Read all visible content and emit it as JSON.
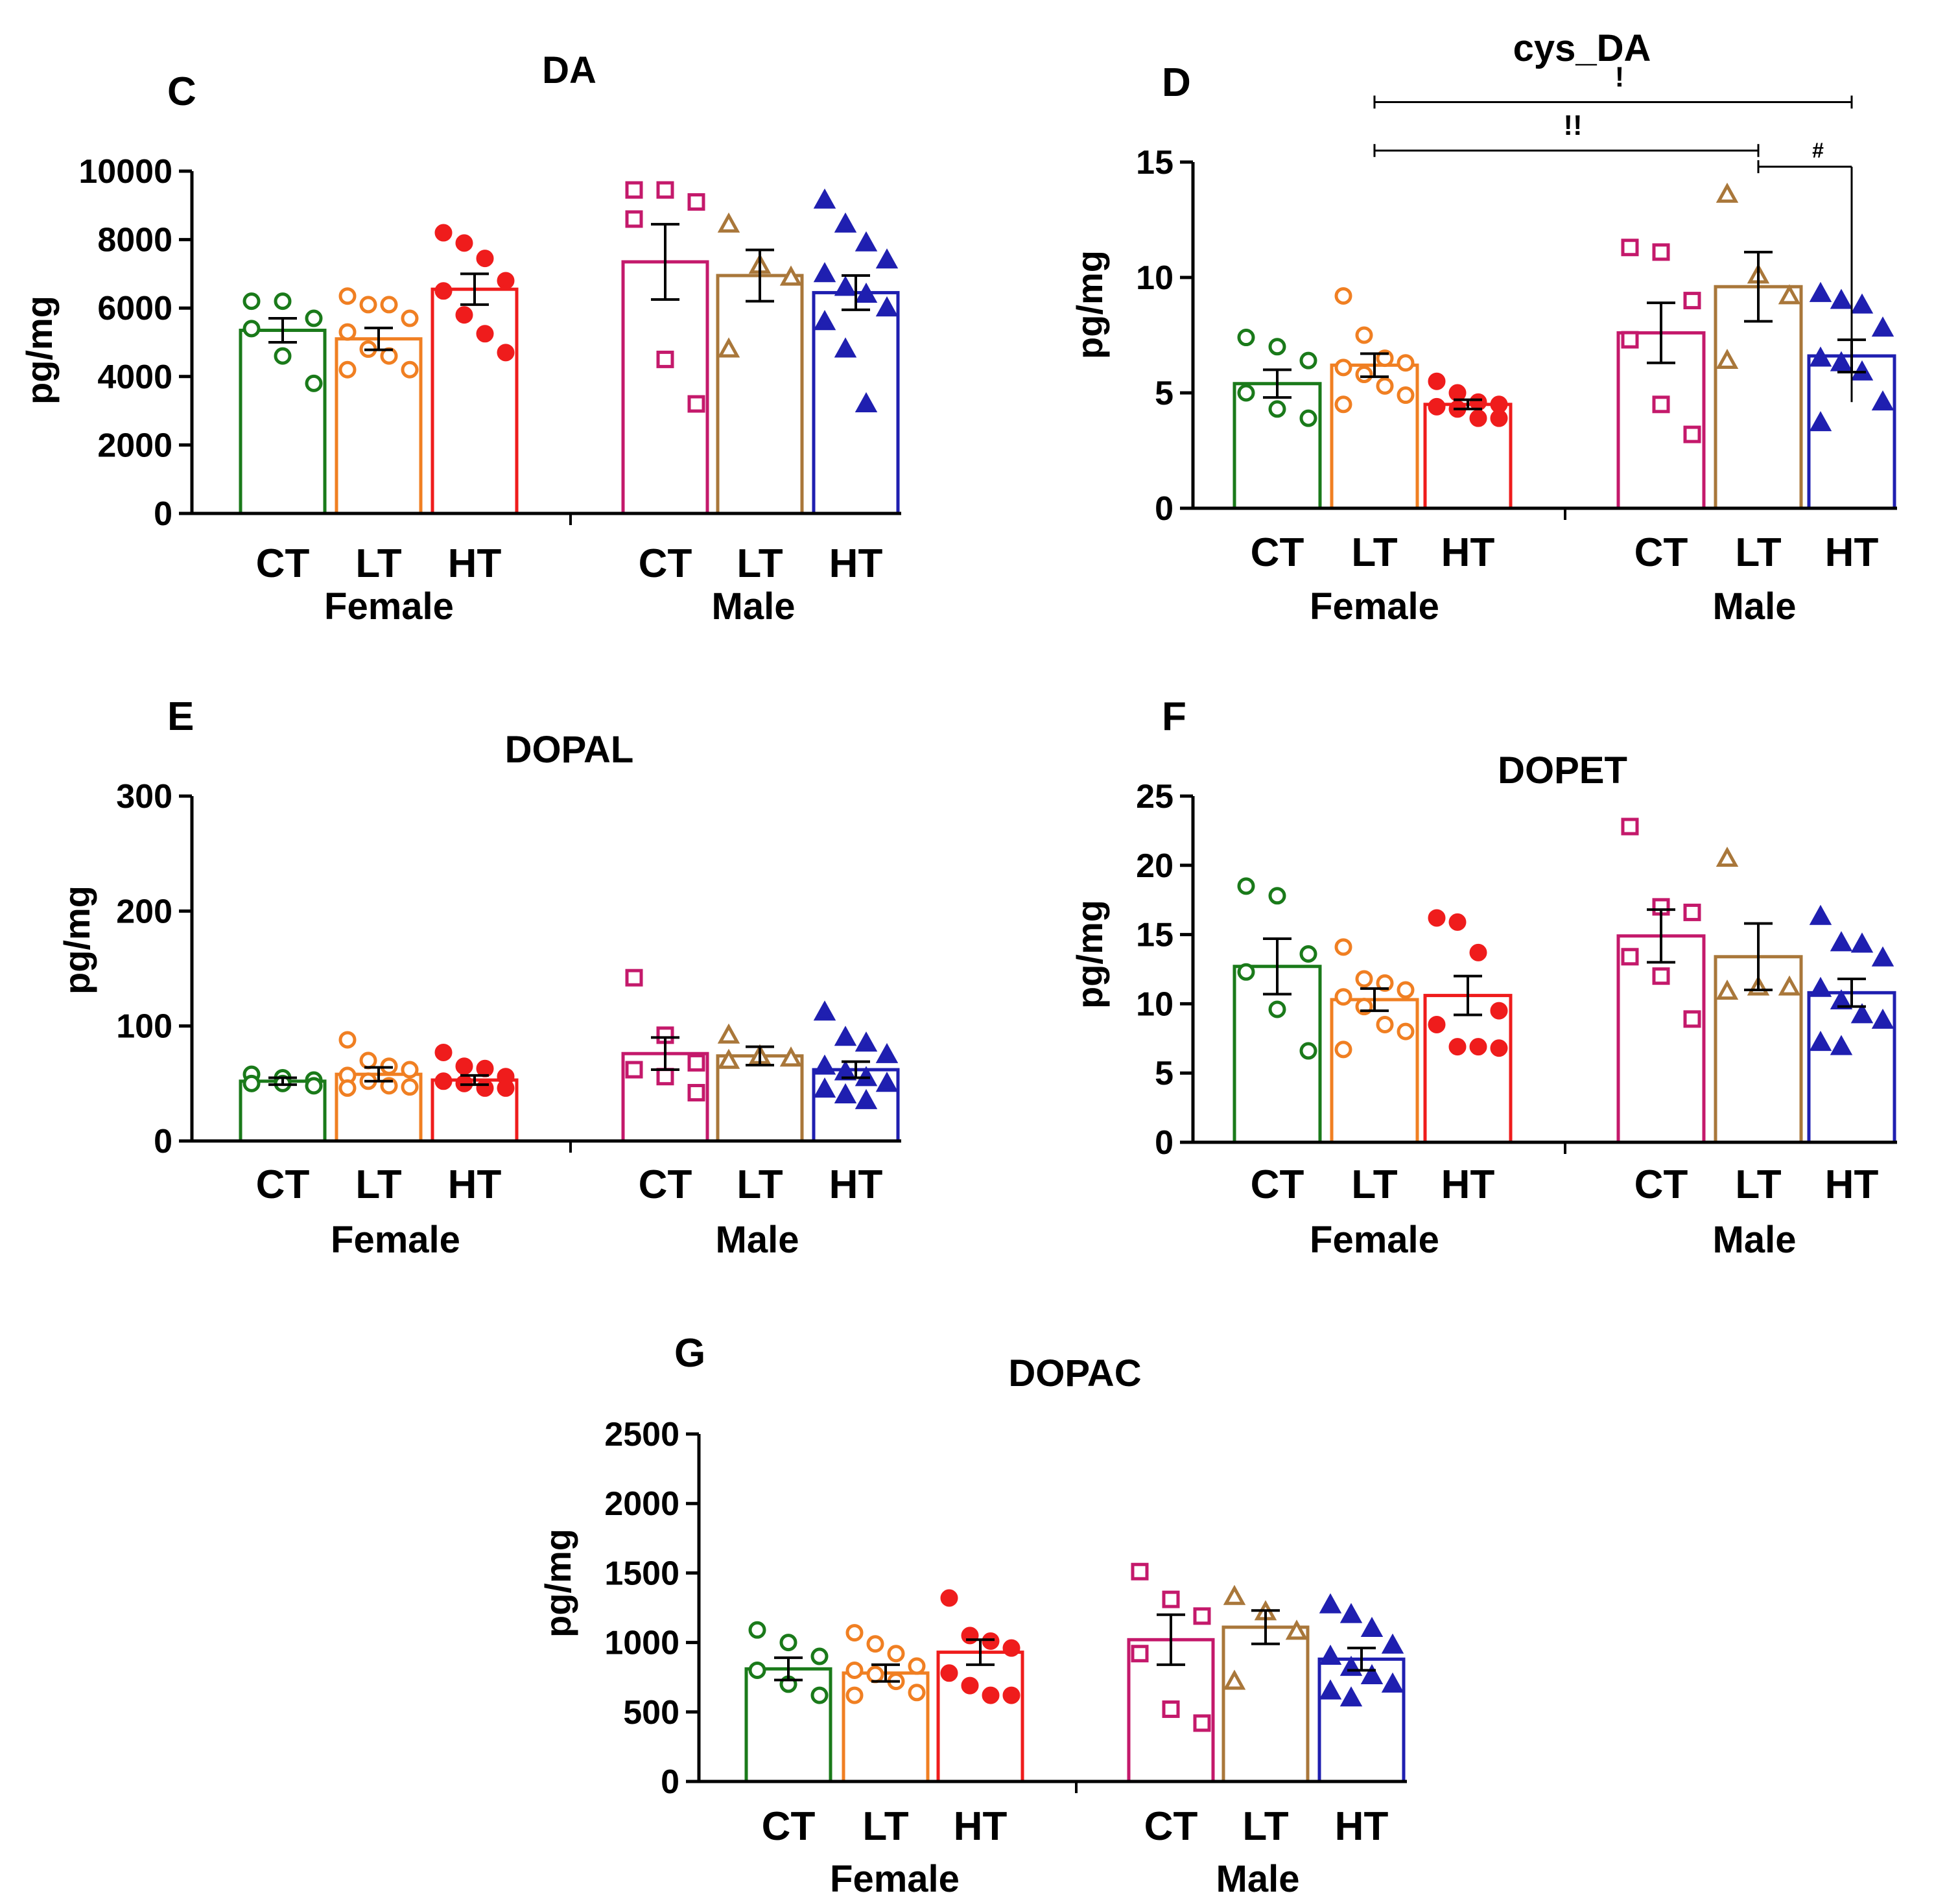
{
  "figure": {
    "background": "#ffffff"
  },
  "colors": {
    "CT_F": "#1a7a1a",
    "LT_F": "#f07f22",
    "HT_F": "#ef1c1c",
    "CT_M": "#c4196b",
    "LT_M": "#a9773a",
    "HT_M": "#1f1fb0"
  },
  "chart_data": [
    {
      "id": "C",
      "type": "bar",
      "panel_letter": "C",
      "title": "DA",
      "ylabel": "pg/mg",
      "ylim": [
        0,
        10000
      ],
      "yticks": [
        0,
        2000,
        4000,
        6000,
        8000,
        10000
      ],
      "categories": [
        "CT",
        "LT",
        "HT",
        "CT",
        "LT",
        "HT"
      ],
      "groups": [
        "Female",
        "Male"
      ],
      "series": [
        {
          "name": "Female CT",
          "mean": 5350,
          "sem": 350,
          "marker": "circle-open",
          "color": "CT_F",
          "points": [
            6200,
            6200,
            5700,
            5400,
            4600,
            3800
          ]
        },
        {
          "name": "Female LT",
          "mean": 5100,
          "sem": 320,
          "marker": "circle-open",
          "color": "LT_F",
          "points": [
            6350,
            6100,
            6100,
            5700,
            5300,
            4800,
            4600,
            4200,
            4200
          ]
        },
        {
          "name": "Female HT",
          "mean": 6550,
          "sem": 450,
          "marker": "circle-filled",
          "color": "HT_F",
          "points": [
            8200,
            7900,
            7450,
            6800,
            6500,
            5800,
            5250,
            4700
          ]
        },
        {
          "name": "Male CT",
          "mean": 7350,
          "sem": 1100,
          "marker": "square-open",
          "color": "CT_M",
          "points": [
            9450,
            9450,
            9100,
            8600,
            4500,
            3200
          ]
        },
        {
          "name": "Male LT",
          "mean": 6950,
          "sem": 750,
          "marker": "triangle-open",
          "color": "LT_M",
          "points": [
            8450,
            7250,
            6900,
            4800
          ]
        },
        {
          "name": "Male HT",
          "mean": 6450,
          "sem": 500,
          "marker": "triangle-filled",
          "color": "HT_M",
          "points": [
            9150,
            8450,
            7900,
            7400,
            7000,
            6600,
            6400,
            6000,
            5600,
            4800,
            3200
          ]
        }
      ],
      "annotations": []
    },
    {
      "id": "D",
      "type": "bar",
      "panel_letter": "D",
      "title": "cys_DA",
      "ylabel": "pg/mg",
      "ylim": [
        0,
        15
      ],
      "yticks": [
        0,
        5,
        10,
        15
      ],
      "categories": [
        "CT",
        "LT",
        "HT",
        "CT",
        "LT",
        "HT"
      ],
      "groups": [
        "Female",
        "Male"
      ],
      "series": [
        {
          "name": "Female CT",
          "mean": 5.4,
          "sem": 0.6,
          "marker": "circle-open",
          "color": "CT_F",
          "points": [
            7.4,
            7.0,
            6.4,
            5.0,
            4.3,
            3.9
          ]
        },
        {
          "name": "Female LT",
          "mean": 6.2,
          "sem": 0.5,
          "marker": "circle-open",
          "color": "LT_F",
          "points": [
            9.2,
            7.5,
            6.5,
            6.3,
            6.1,
            5.8,
            5.3,
            4.9,
            4.5
          ]
        },
        {
          "name": "Female HT",
          "mean": 4.5,
          "sem": 0.2,
          "marker": "circle-filled",
          "color": "HT_F",
          "points": [
            5.5,
            5.0,
            4.6,
            4.5,
            4.4,
            4.3,
            3.9,
            3.9
          ]
        },
        {
          "name": "Male CT",
          "mean": 7.6,
          "sem": 1.3,
          "marker": "square-open",
          "color": "CT_M",
          "points": [
            11.3,
            11.1,
            9.0,
            7.3,
            4.5,
            3.2
          ]
        },
        {
          "name": "Male LT",
          "mean": 9.6,
          "sem": 1.5,
          "marker": "triangle-open",
          "color": "LT_M",
          "points": [
            13.6,
            10.1,
            9.2,
            6.4
          ]
        },
        {
          "name": "Male HT",
          "mean": 6.6,
          "sem": 0.7,
          "marker": "triangle-filled",
          "color": "HT_M",
          "points": [
            9.3,
            9.0,
            8.8,
            7.8,
            6.5,
            6.3,
            5.9,
            4.6,
            3.7
          ]
        }
      ],
      "annotations": [
        {
          "from": 1,
          "to": 5,
          "label": "!",
          "level": 17.6,
          "style": "big"
        },
        {
          "from": 1,
          "to": 4,
          "label": "!!",
          "level": 15.5,
          "style": "big"
        },
        {
          "from": 4,
          "to": 5,
          "label": "#",
          "level": 14.8,
          "style": "small",
          "drop": 4.6
        }
      ]
    },
    {
      "id": "E",
      "type": "bar",
      "panel_letter": "E",
      "title": "DOPAL",
      "ylabel": "pg/mg",
      "ylim": [
        0,
        300
      ],
      "yticks": [
        0,
        100,
        200,
        300
      ],
      "categories": [
        "CT",
        "LT",
        "HT",
        "CT",
        "LT",
        "HT"
      ],
      "groups": [
        "Female",
        "Male"
      ],
      "series": [
        {
          "name": "Female CT",
          "mean": 52,
          "sem": 3,
          "marker": "circle-open",
          "color": "CT_F",
          "points": [
            58,
            55,
            53,
            50,
            50,
            48
          ]
        },
        {
          "name": "Female LT",
          "mean": 58,
          "sem": 6,
          "marker": "circle-open",
          "color": "LT_F",
          "points": [
            88,
            70,
            65,
            62,
            57,
            52,
            48,
            47,
            46
          ]
        },
        {
          "name": "Female HT",
          "mean": 53,
          "sem": 4,
          "marker": "circle-filled",
          "color": "HT_F",
          "points": [
            77,
            65,
            63,
            56,
            52,
            50,
            46,
            46
          ]
        },
        {
          "name": "Male CT",
          "mean": 76,
          "sem": 14,
          "marker": "square-open",
          "color": "CT_M",
          "points": [
            142,
            92,
            68,
            62,
            56,
            42
          ]
        },
        {
          "name": "Male LT",
          "mean": 74,
          "sem": 8,
          "marker": "triangle-open",
          "color": "LT_M",
          "points": [
            92,
            74,
            72,
            70
          ]
        },
        {
          "name": "Male HT",
          "mean": 62,
          "sem": 7,
          "marker": "triangle-filled",
          "color": "HT_M",
          "points": [
            112,
            90,
            85,
            75,
            65,
            60,
            55,
            50,
            45,
            40,
            35
          ]
        }
      ],
      "annotations": []
    },
    {
      "id": "F",
      "type": "bar",
      "panel_letter": "F",
      "title": "DOPET",
      "ylabel": "pg/mg",
      "ylim": [
        0,
        25
      ],
      "yticks": [
        0,
        5,
        10,
        15,
        20,
        25
      ],
      "categories": [
        "CT",
        "LT",
        "HT",
        "CT",
        "LT",
        "HT"
      ],
      "groups": [
        "Female",
        "Male"
      ],
      "series": [
        {
          "name": "Female CT",
          "mean": 12.7,
          "sem": 2.0,
          "marker": "circle-open",
          "color": "CT_F",
          "points": [
            18.5,
            17.8,
            13.6,
            12.3,
            9.6,
            6.6
          ]
        },
        {
          "name": "Female LT",
          "mean": 10.3,
          "sem": 0.8,
          "marker": "circle-open",
          "color": "LT_F",
          "points": [
            14.1,
            11.8,
            11.5,
            11.0,
            10.5,
            9.8,
            8.5,
            8.0,
            6.7
          ]
        },
        {
          "name": "Female HT",
          "mean": 10.6,
          "sem": 1.4,
          "marker": "circle-filled",
          "color": "HT_F",
          "points": [
            16.2,
            15.9,
            13.7,
            9.5,
            8.5,
            6.9,
            6.9,
            6.8
          ]
        },
        {
          "name": "Male CT",
          "mean": 14.9,
          "sem": 1.9,
          "marker": "square-open",
          "color": "CT_M",
          "points": [
            22.8,
            17.0,
            16.6,
            13.4,
            12.0,
            8.9
          ]
        },
        {
          "name": "Male LT",
          "mean": 13.4,
          "sem": 2.4,
          "marker": "triangle-open",
          "color": "LT_M",
          "points": [
            20.5,
            11.2,
            11.2,
            10.9
          ]
        },
        {
          "name": "Male HT",
          "mean": 10.8,
          "sem": 1.0,
          "marker": "triangle-filled",
          "color": "HT_M",
          "points": [
            16.3,
            14.4,
            14.3,
            13.3,
            11.1,
            10.2,
            9.2,
            8.8,
            7.2,
            6.9
          ]
        }
      ],
      "annotations": []
    },
    {
      "id": "G",
      "type": "bar",
      "panel_letter": "G",
      "title": "DOPAC",
      "ylabel": "pg/mg",
      "ylim": [
        0,
        2500
      ],
      "yticks": [
        0,
        500,
        1000,
        1500,
        2000,
        2500
      ],
      "categories": [
        "CT",
        "LT",
        "HT",
        "CT",
        "LT",
        "HT"
      ],
      "groups": [
        "Female",
        "Male"
      ],
      "series": [
        {
          "name": "Female CT",
          "mean": 810,
          "sem": 80,
          "marker": "circle-open",
          "color": "CT_F",
          "points": [
            1090,
            1000,
            900,
            800,
            700,
            620
          ]
        },
        {
          "name": "Female LT",
          "mean": 780,
          "sem": 60,
          "marker": "circle-open",
          "color": "LT_F",
          "points": [
            1070,
            990,
            920,
            830,
            800,
            770,
            720,
            640,
            620
          ]
        },
        {
          "name": "Female HT",
          "mean": 930,
          "sem": 90,
          "marker": "circle-filled",
          "color": "HT_F",
          "points": [
            1320,
            1050,
            1010,
            960,
            780,
            690,
            620,
            620
          ]
        },
        {
          "name": "Male CT",
          "mean": 1020,
          "sem": 180,
          "marker": "square-open",
          "color": "CT_M",
          "points": [
            1510,
            1310,
            1190,
            920,
            520,
            420
          ]
        },
        {
          "name": "Male LT",
          "mean": 1110,
          "sem": 120,
          "marker": "triangle-open",
          "color": "LT_M",
          "points": [
            1330,
            1220,
            1080,
            720
          ]
        },
        {
          "name": "Male HT",
          "mean": 880,
          "sem": 80,
          "marker": "triangle-filled",
          "color": "HT_M",
          "points": [
            1270,
            1200,
            1100,
            980,
            900,
            820,
            760,
            700,
            650,
            600
          ]
        }
      ],
      "annotations": []
    }
  ]
}
